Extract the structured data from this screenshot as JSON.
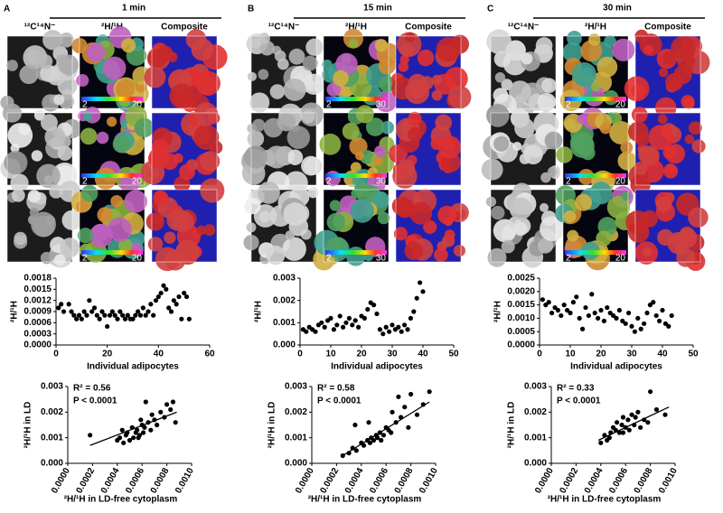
{
  "panels": [
    {
      "letter": "A",
      "title": "1 min",
      "image_labels": [
        "¹²C¹⁴N⁻",
        "²H/¹H",
        "Composite"
      ],
      "colorbar": [
        2,
        20
      ],
      "adipocytes": {
        "type": "scatter",
        "ylabel": "²H/¹H",
        "xlabel": "Individual adipocytes",
        "xlim": [
          0,
          60
        ],
        "xticks": [
          0,
          20,
          40,
          60
        ],
        "ylim": [
          0,
          0.0018
        ],
        "yticks": [
          {
            "value": 0,
            "label": "0.0000"
          },
          {
            "value": 0.0003,
            "label": "0.0003"
          },
          {
            "value": 0.0006,
            "label": "0.0006"
          },
          {
            "value": 0.0009,
            "label": "0.0009"
          },
          {
            "value": 0.0012,
            "label": "0.0012"
          },
          {
            "value": 0.0015,
            "label": "0.0015"
          },
          {
            "value": 0.0018,
            "label": "0.0018"
          }
        ],
        "x": [
          1,
          2,
          3,
          5,
          6,
          7,
          8,
          9,
          10,
          11,
          12,
          13,
          14,
          15,
          16,
          17,
          18,
          19,
          20,
          21,
          22,
          23,
          24,
          25,
          26,
          27,
          28,
          29,
          30,
          31,
          32,
          33,
          34,
          35,
          36,
          37,
          38,
          39,
          40,
          41,
          42,
          43,
          44,
          45,
          46,
          47,
          48,
          49,
          50,
          51,
          52
        ],
        "y": [
          0.001,
          0.0011,
          0.0009,
          0.0011,
          0.0009,
          0.0008,
          0.0007,
          0.0008,
          0.0007,
          0.0009,
          0.0008,
          0.0012,
          0.0009,
          0.001,
          0.0008,
          0.0007,
          0.0009,
          0.0008,
          0.0005,
          0.0008,
          0.0009,
          0.0008,
          0.0007,
          0.0009,
          0.0008,
          0.0007,
          0.0008,
          0.0007,
          0.0007,
          0.0008,
          0.0009,
          0.0008,
          0.001,
          0.0008,
          0.0009,
          0.0011,
          0.0008,
          0.0012,
          0.0013,
          0.0014,
          0.0016,
          0.0015,
          0.001,
          0.0009,
          0.0012,
          0.0011,
          0.0013,
          0.0007,
          0.0014,
          0.0013,
          0.0007
        ]
      },
      "correlation": {
        "type": "scatter",
        "ylabel": "²H/¹H in LD",
        "xlabel": "²H/¹H in LD-free cytoplasm",
        "annotations": [
          "R² = 0.56",
          "P < 0.0001"
        ],
        "xlim": [
          0,
          0.001
        ],
        "xticks": [
          {
            "value": 0,
            "label": "0.0000"
          },
          {
            "value": 0.0002,
            "label": "0.0002"
          },
          {
            "value": 0.0004,
            "label": "0.0004"
          },
          {
            "value": 0.0006,
            "label": "0.0006"
          },
          {
            "value": 0.0008,
            "label": "0.0008"
          },
          {
            "value": 0.001,
            "label": "0.0010"
          }
        ],
        "ylim": [
          0,
          0.003
        ],
        "yticks": [
          {
            "value": 0,
            "label": "0.000"
          },
          {
            "value": 0.001,
            "label": "0.001"
          },
          {
            "value": 0.002,
            "label": "0.002"
          },
          {
            "value": 0.003,
            "label": "0.003"
          }
        ],
        "x": [
          0.00018,
          0.0004,
          0.00042,
          0.00045,
          0.00048,
          0.0005,
          0.00052,
          0.00053,
          0.00055,
          0.00056,
          0.00058,
          0.0006,
          0.00062,
          0.00063,
          0.00065,
          0.00067,
          0.0007,
          0.00072,
          0.00075,
          0.00078,
          0.0008,
          0.00085,
          0.00087,
          0.00047,
          0.00057,
          0.00061,
          0.00068,
          0.00083,
          0.00044,
          0.00059
        ],
        "y": [
          0.0011,
          0.0009,
          0.001,
          0.0008,
          0.0012,
          0.0009,
          0.0014,
          0.001,
          0.0012,
          0.0013,
          0.0011,
          0.0015,
          0.0014,
          0.0024,
          0.0016,
          0.0013,
          0.0017,
          0.0015,
          0.002,
          0.0018,
          0.0023,
          0.0024,
          0.0016,
          0.0011,
          0.001,
          0.0012,
          0.0019,
          0.0021,
          0.0013,
          0.0017
        ],
        "fit": {
          "x": [
            0.00018,
            0.00088
          ],
          "y": [
            0.0007,
            0.002
          ]
        }
      }
    },
    {
      "letter": "B",
      "title": "15 min",
      "image_labels": [
        "¹²C¹⁴N⁻",
        "²H/¹H",
        "Composite"
      ],
      "colorbar": [
        2,
        30
      ],
      "adipocytes": {
        "type": "scatter",
        "ylabel": "²H/¹H",
        "xlabel": "Individual adipocytes",
        "xlim": [
          0,
          50
        ],
        "xticks": [
          0,
          10,
          20,
          30,
          40,
          50
        ],
        "ylim": [
          0,
          0.003
        ],
        "yticks": [
          {
            "value": 0,
            "label": "0.000"
          },
          {
            "value": 0.001,
            "label": "0.001"
          },
          {
            "value": 0.002,
            "label": "0.002"
          },
          {
            "value": 0.003,
            "label": "0.003"
          }
        ],
        "x": [
          1,
          2,
          3,
          4,
          5,
          6,
          7,
          8,
          9,
          10,
          11,
          12,
          13,
          14,
          15,
          16,
          17,
          18,
          19,
          20,
          21,
          22,
          23,
          24,
          25,
          26,
          27,
          28,
          29,
          30,
          31,
          32,
          33,
          34,
          35,
          36,
          37,
          38,
          39,
          40
        ],
        "y": [
          0.0007,
          0.0006,
          0.0008,
          0.0007,
          0.0006,
          0.0009,
          0.001,
          0.0008,
          0.0011,
          0.0012,
          0.0007,
          0.0009,
          0.0013,
          0.0008,
          0.001,
          0.0012,
          0.0009,
          0.0011,
          0.0008,
          0.0013,
          0.0012,
          0.0016,
          0.0019,
          0.0018,
          0.0014,
          0.0007,
          0.0005,
          0.0008,
          0.0006,
          0.0009,
          0.0007,
          0.0008,
          0.0006,
          0.0009,
          0.0007,
          0.0012,
          0.0015,
          0.0021,
          0.0028,
          0.0024
        ]
      },
      "correlation": {
        "type": "scatter",
        "ylabel": "²H/¹H in LD",
        "xlabel": "²H/¹H in LD-free cytoplasm",
        "annotations": [
          "R² = 0.58",
          "P < 0.0001"
        ],
        "xlim": [
          0,
          0.001
        ],
        "xticks": [
          {
            "value": 0,
            "label": "0.0000"
          },
          {
            "value": 0.0002,
            "label": "0.0002"
          },
          {
            "value": 0.0004,
            "label": "0.0004"
          },
          {
            "value": 0.0006,
            "label": "0.0006"
          },
          {
            "value": 0.0008,
            "label": "0.0008"
          },
          {
            "value": 0.001,
            "label": "0.0010"
          }
        ],
        "ylim": [
          0,
          0.003
        ],
        "yticks": [
          {
            "value": 0,
            "label": "0.000"
          },
          {
            "value": 0.001,
            "label": "0.001"
          },
          {
            "value": 0.002,
            "label": "0.002"
          },
          {
            "value": 0.003,
            "label": "0.003"
          }
        ],
        "x": [
          0.00025,
          0.0003,
          0.00033,
          0.00036,
          0.0004,
          0.00042,
          0.00045,
          0.00047,
          0.00048,
          0.0005,
          0.00052,
          0.00053,
          0.00055,
          0.00058,
          0.0006,
          0.00062,
          0.00065,
          0.00068,
          0.0007,
          0.00072,
          0.00075,
          0.0008,
          0.00085,
          0.0009,
          0.00095,
          0.00046,
          0.00056,
          0.00064,
          0.00035,
          0.00078
        ],
        "y": [
          0.0003,
          0.0004,
          0.0006,
          0.0005,
          0.0008,
          0.0007,
          0.0009,
          0.0008,
          0.001,
          0.0009,
          0.0011,
          0.001,
          0.0012,
          0.0011,
          0.0014,
          0.0013,
          0.002,
          0.0016,
          0.0026,
          0.0018,
          0.0022,
          0.0027,
          0.0019,
          0.0023,
          0.0028,
          0.0016,
          0.0009,
          0.0012,
          0.0015,
          0.0014
        ],
        "fit": {
          "x": [
            0.00025,
            0.00095
          ],
          "y": [
            0.0003,
            0.0024
          ]
        }
      }
    },
    {
      "letter": "C",
      "title": "30 min",
      "image_labels": [
        "¹²C¹⁴N⁻",
        "²H/¹H",
        "Composite"
      ],
      "colorbar": [
        2,
        20
      ],
      "adipocytes": {
        "type": "scatter",
        "ylabel": "²H/¹H",
        "xlabel": "Individual adipocytes",
        "xlim": [
          0,
          50
        ],
        "xticks": [
          0,
          10,
          20,
          30,
          40,
          50
        ],
        "ylim": [
          0,
          0.0025
        ],
        "yticks": [
          {
            "value": 0,
            "label": "0.0000"
          },
          {
            "value": 0.0005,
            "label": "0.0005"
          },
          {
            "value": 0.001,
            "label": "0.0010"
          },
          {
            "value": 0.0015,
            "label": "0.0015"
          },
          {
            "value": 0.002,
            "label": "0.0020"
          },
          {
            "value": 0.0025,
            "label": "0.0025"
          }
        ],
        "x": [
          1,
          2,
          3,
          4,
          5,
          6,
          7,
          8,
          9,
          10,
          11,
          12,
          13,
          14,
          15,
          16,
          17,
          18,
          19,
          20,
          21,
          22,
          23,
          24,
          25,
          26,
          27,
          28,
          29,
          30,
          31,
          32,
          33,
          34,
          35,
          36,
          37,
          38,
          39,
          40,
          41,
          42,
          43
        ],
        "y": [
          0.0017,
          0.0015,
          0.0016,
          0.0012,
          0.0014,
          0.0013,
          0.0011,
          0.0015,
          0.0013,
          0.0012,
          0.0016,
          0.0018,
          0.001,
          0.0006,
          0.0014,
          0.0011,
          0.0019,
          0.0012,
          0.001,
          0.0013,
          0.0009,
          0.0014,
          0.0012,
          0.0011,
          0.001,
          0.0013,
          0.0009,
          0.0008,
          0.0012,
          0.0007,
          0.0005,
          0.001,
          0.0006,
          0.0008,
          0.0012,
          0.0015,
          0.0016,
          0.0011,
          0.0009,
          0.0013,
          0.0008,
          0.0007,
          0.0011
        ]
      },
      "correlation": {
        "type": "scatter",
        "ylabel": "²H/¹H in LD",
        "xlabel": "²H/¹H in LD-free cytoplasm",
        "annotations": [
          "R² = 0.33",
          "P < 0.0001"
        ],
        "xlim": [
          0,
          0.001
        ],
        "xticks": [
          {
            "value": 0,
            "label": "0.0000"
          },
          {
            "value": 0.0002,
            "label": "0.0002"
          },
          {
            "value": 0.0004,
            "label": "0.0004"
          },
          {
            "value": 0.0006,
            "label": "0.0006"
          },
          {
            "value": 0.0008,
            "label": "0.0008"
          },
          {
            "value": 0.001,
            "label": "0.0010"
          }
        ],
        "ylim": [
          0,
          0.003
        ],
        "yticks": [
          {
            "value": 0,
            "label": "0.000"
          },
          {
            "value": 0.001,
            "label": "0.001"
          },
          {
            "value": 0.002,
            "label": "0.002"
          },
          {
            "value": 0.003,
            "label": "0.003"
          }
        ],
        "x": [
          0.0004,
          0.00043,
          0.00045,
          0.00048,
          0.0005,
          0.00052,
          0.00053,
          0.00055,
          0.00057,
          0.00058,
          0.0006,
          0.00062,
          0.00063,
          0.00065,
          0.00067,
          0.00068,
          0.0007,
          0.00072,
          0.00075,
          0.00078,
          0.0008,
          0.00085,
          0.00092,
          0.00047,
          0.00058
        ],
        "y": [
          0.0008,
          0.0011,
          0.0009,
          0.0012,
          0.0014,
          0.0013,
          0.0016,
          0.0012,
          0.0015,
          0.0018,
          0.0014,
          0.0017,
          0.0013,
          0.0019,
          0.0015,
          0.0018,
          0.002,
          0.0014,
          0.0017,
          0.0016,
          0.0028,
          0.0021,
          0.0019,
          0.001,
          0.0012
        ],
        "fit": {
          "x": [
            0.00038,
            0.00095
          ],
          "y": [
            0.0009,
            0.0022
          ]
        }
      }
    }
  ]
}
